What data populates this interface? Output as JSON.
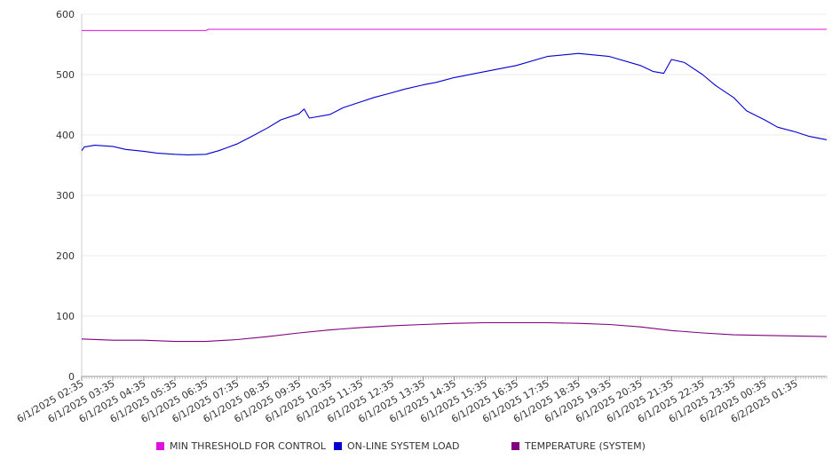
{
  "chart_data": {
    "type": "line",
    "ylim": [
      0,
      600
    ],
    "yticks": [
      "0",
      "100",
      "200",
      "300",
      "400",
      "500",
      "600"
    ],
    "grid": true,
    "legend_position": "bottom",
    "x_tick_labels": [
      "6/1/2025 02:35",
      "6/1/2025 03:35",
      "6/1/2025 04:35",
      "6/1/2025 05:35",
      "6/1/2025 06:35",
      "6/1/2025 07:35",
      "6/1/2025 08:35",
      "6/1/2025 09:35",
      "6/1/2025 10:35",
      "6/1/2025 11:35",
      "6/1/2025 12:35",
      "6/1/2025 13:35",
      "6/1/2025 14:35",
      "6/1/2025 15:35",
      "6/1/2025 16:35",
      "6/1/2025 17:35",
      "6/1/2025 18:35",
      "6/1/2025 19:35",
      "6/1/2025 20:35",
      "6/1/2025 21:35",
      "6/1/2025 22:35",
      "6/1/2025 23:35",
      "6/2/2025 00:35",
      "6/2/2025 01:35"
    ],
    "series": [
      {
        "name": "MIN THRESHOLD FOR CONTROL",
        "color": "#e010e0",
        "x": [
          "6/1/2025 02:35",
          "6/1/2025 06:35",
          "6/1/2025 06:40",
          "6/2/2025 02:35"
        ],
        "values": [
          573,
          573,
          575,
          575
        ]
      },
      {
        "name": "ON-LINE SYSTEM LOAD",
        "color": "#0000d0",
        "x": [
          "6/1/2025 02:35",
          "6/1/2025 02:40",
          "6/1/2025 03:00",
          "6/1/2025 03:35",
          "6/1/2025 04:00",
          "6/1/2025 04:35",
          "6/1/2025 05:00",
          "6/1/2025 05:35",
          "6/1/2025 06:00",
          "6/1/2025 06:35",
          "6/1/2025 07:00",
          "6/1/2025 07:35",
          "6/1/2025 08:00",
          "6/1/2025 08:35",
          "6/1/2025 09:00",
          "6/1/2025 09:35",
          "6/1/2025 09:45",
          "6/1/2025 09:55",
          "6/1/2025 10:35",
          "6/1/2025 11:00",
          "6/1/2025 11:35",
          "6/1/2025 12:00",
          "6/1/2025 12:35",
          "6/1/2025 13:00",
          "6/1/2025 13:35",
          "6/1/2025 14:00",
          "6/1/2025 14:35",
          "6/1/2025 15:35",
          "6/1/2025 16:35",
          "6/1/2025 17:35",
          "6/1/2025 18:35",
          "6/1/2025 19:35",
          "6/1/2025 20:35",
          "6/1/2025 21:00",
          "6/1/2025 21:20",
          "6/1/2025 21:35",
          "6/1/2025 22:00",
          "6/1/2025 22:35",
          "6/1/2025 23:00",
          "6/1/2025 23:35",
          "6/2/2025 00:00",
          "6/2/2025 00:35",
          "6/2/2025 01:00",
          "6/2/2025 01:35",
          "6/2/2025 02:00",
          "6/2/2025 02:35"
        ],
        "values": [
          374,
          380,
          383,
          381,
          376,
          373,
          370,
          368,
          367,
          368,
          374,
          385,
          396,
          412,
          425,
          435,
          443,
          428,
          434,
          445,
          455,
          462,
          470,
          476,
          483,
          487,
          495,
          505,
          515,
          530,
          535,
          530,
          515,
          505,
          502,
          525,
          520,
          500,
          482,
          462,
          440,
          425,
          413,
          405,
          398,
          392
        ]
      },
      {
        "name": "TEMPERATURE (SYSTEM)",
        "color": "#800080",
        "x": [
          "6/1/2025 02:35",
          "6/1/2025 03:35",
          "6/1/2025 04:35",
          "6/1/2025 05:35",
          "6/1/2025 06:35",
          "6/1/2025 07:35",
          "6/1/2025 08:35",
          "6/1/2025 09:35",
          "6/1/2025 10:35",
          "6/1/2025 11:35",
          "6/1/2025 12:35",
          "6/1/2025 13:35",
          "6/1/2025 14:35",
          "6/1/2025 15:35",
          "6/1/2025 16:35",
          "6/1/2025 17:35",
          "6/1/2025 18:35",
          "6/1/2025 19:35",
          "6/1/2025 20:35",
          "6/1/2025 21:35",
          "6/1/2025 22:35",
          "6/1/2025 23:35",
          "6/2/2025 00:35",
          "6/2/2025 01:35",
          "6/2/2025 02:35"
        ],
        "values": [
          62,
          60,
          60,
          58,
          58,
          61,
          66,
          72,
          77,
          81,
          84,
          86,
          88,
          89,
          89,
          89,
          88,
          86,
          82,
          76,
          72,
          69,
          68,
          67,
          66
        ]
      }
    ]
  }
}
